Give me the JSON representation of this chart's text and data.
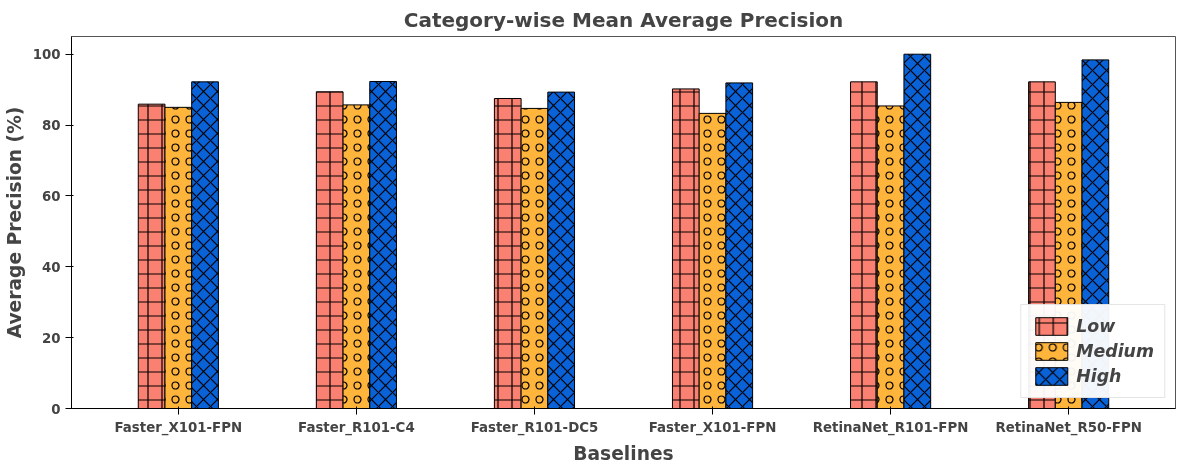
{
  "chart_data": {
    "type": "bar",
    "title": "Category-wise Mean Average Precision",
    "xlabel": "Baselines",
    "ylabel": "Average Precision (%)",
    "categories": [
      "Faster_X101-FPN",
      "Faster_R101-C4",
      "Faster_R101-DC5",
      "Faster_X101-FPN",
      "RetinaNet_R101-FPN",
      "RetinaNet_R50-FPN"
    ],
    "series": [
      {
        "name": "Low",
        "color": "#fa8072",
        "values": [
          85.9,
          89.4,
          87.5,
          90.2,
          92.2,
          92.2
        ]
      },
      {
        "name": "Medium",
        "color": "#ffb43c",
        "values": [
          85.0,
          85.7,
          84.7,
          83.3,
          85.4,
          86.4
        ]
      },
      {
        "name": "High",
        "color": "#0a62d8",
        "values": [
          92.2,
          92.3,
          89.3,
          91.9,
          100.0,
          98.4
        ]
      }
    ],
    "ylim": [
      0,
      105
    ],
    "yticks": [
      0,
      20,
      40,
      60,
      80,
      100
    ],
    "grid": false,
    "legend": "bottom right"
  }
}
